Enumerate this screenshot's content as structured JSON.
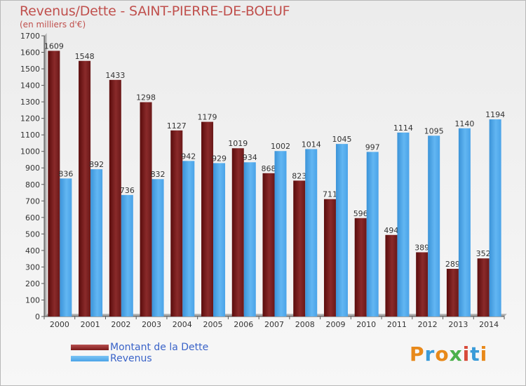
{
  "header": {
    "title": "Revenus/Dette - SAINT-PIERRE-DE-BOEUF",
    "subtitle": "(en milliers d'€)"
  },
  "legend": {
    "items": [
      {
        "label": "Montant de la Dette",
        "color": "#7a1a1a"
      },
      {
        "label": "Revenus",
        "color": "#4aa3e8"
      }
    ]
  },
  "logo": {
    "text": "Proxiti",
    "colors": [
      "#e8891a",
      "#3a9bd8",
      "#e8891a",
      "#4bb04b",
      "#d84a3a",
      "#3a9bd8",
      "#e8891a"
    ]
  },
  "chart_data": {
    "type": "bar",
    "title": "Revenus/Dette - SAINT-PIERRE-DE-BOEUF",
    "subtitle": "(en milliers d'€)",
    "categories": [
      "2000",
      "2001",
      "2002",
      "2003",
      "2004",
      "2005",
      "2006",
      "2007",
      "2008",
      "2009",
      "2010",
      "2011",
      "2012",
      "2013",
      "2014"
    ],
    "series": [
      {
        "name": "Montant de la Dette",
        "color": "#7a1a1a",
        "values": [
          1609,
          1548,
          1433,
          1298,
          1127,
          1179,
          1019,
          868,
          823,
          711,
          596,
          494,
          389,
          289,
          352
        ]
      },
      {
        "name": "Revenus",
        "color": "#4aa3e8",
        "values": [
          836,
          892,
          736,
          832,
          942,
          929,
          934,
          1002,
          1014,
          1045,
          997,
          1114,
          1095,
          1140,
          1194
        ]
      }
    ],
    "ylim": [
      0,
      1700
    ],
    "yticks": [
      0,
      100,
      200,
      300,
      400,
      500,
      600,
      700,
      800,
      900,
      1000,
      1100,
      1200,
      1300,
      1400,
      1500,
      1600,
      1700
    ],
    "grid": false,
    "legend_position": "bottom-left"
  }
}
